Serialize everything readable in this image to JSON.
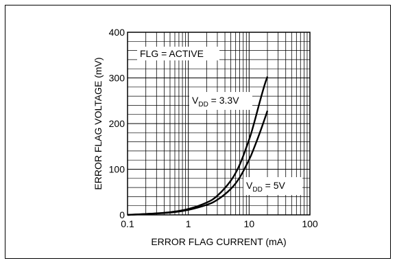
{
  "chart_data": {
    "type": "line",
    "xlabel": "ERROR FLAG CURRENT (mA)",
    "ylabel": "ERROR FLAG VOLTAGE (mV)",
    "x_scale": "log",
    "xlim": [
      0.1,
      100
    ],
    "ylim": [
      0,
      400
    ],
    "x_ticks": [
      0.1,
      1,
      10,
      100
    ],
    "x_tick_labels": [
      "0.1",
      "1",
      "10",
      "100"
    ],
    "y_ticks": [
      0,
      100,
      200,
      300,
      400
    ],
    "y_tick_labels": [
      "0",
      "100",
      "200",
      "300",
      "400"
    ],
    "y_minor_step": 20,
    "grid": true,
    "annotations": {
      "condition": "FLG = ACTIVE",
      "series_a": {
        "main": "V",
        "sub": "DD",
        "rest": " = 3.3V"
      },
      "series_b": {
        "main": "V",
        "sub": "DD",
        "rest": " = 5V"
      }
    },
    "series": [
      {
        "x": [
          0.1,
          0.2,
          0.5,
          1,
          2,
          3,
          5,
          7,
          10,
          12,
          15,
          18,
          20
        ],
        "y": [
          0,
          2,
          6,
          13,
          27,
          42,
          75,
          110,
          165,
          200,
          248,
          285,
          303
        ]
      },
      {
        "x": [
          0.1,
          0.2,
          0.5,
          1,
          2,
          3,
          5,
          7,
          10,
          12,
          15,
          18,
          20
        ],
        "y": [
          0,
          2,
          5,
          11,
          22,
          33,
          57,
          82,
          121,
          146,
          180,
          210,
          228
        ]
      }
    ]
  }
}
